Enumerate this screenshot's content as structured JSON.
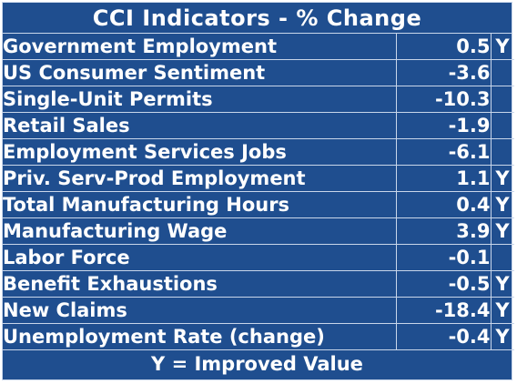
{
  "title": "CCI Indicators - % Change",
  "rows": [
    {
      "name": "Government Employment",
      "value": "0.5",
      "flag": "Y"
    },
    {
      "name": "US Consumer Sentiment",
      "value": "-3.6",
      "flag": ""
    },
    {
      "name": "Single-Unit Permits",
      "value": "-10.3",
      "flag": ""
    },
    {
      "name": "Retail Sales",
      "value": "-1.9",
      "flag": ""
    },
    {
      "name": "Employment Services Jobs",
      "value": "-6.1",
      "flag": ""
    },
    {
      "name": "Priv. Serv-Prod Employment",
      "value": "1.1",
      "flag": "Y"
    },
    {
      "name": "Total Manufacturing Hours",
      "value": "0.4",
      "flag": "Y"
    },
    {
      "name": "Manufacturing Wage",
      "value": "3.9",
      "flag": "Y"
    },
    {
      "name": "Labor Force",
      "value": "-0.1",
      "flag": ""
    },
    {
      "name": "Benefit Exhaustions",
      "value": "-0.5",
      "flag": "Y"
    },
    {
      "name": "New Claims",
      "value": "-18.4",
      "flag": "Y"
    },
    {
      "name": "Unemployment Rate (change)",
      "value": "-0.4",
      "flag": "Y"
    }
  ],
  "footer": "Y = Improved Value",
  "colors": {
    "background": "#1f4e8f",
    "text": "#ffffff",
    "grid": "#c9d6ea"
  }
}
